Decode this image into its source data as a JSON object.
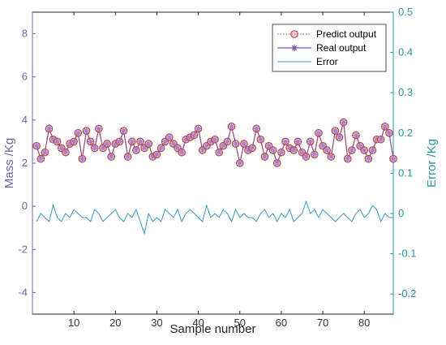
{
  "chart_data": {
    "type": "line",
    "xlabel": "Sample number",
    "ylabel_left": "Mass /Kg",
    "ylabel_right": "Error /Kg",
    "xlim": [
      0,
      87
    ],
    "ylim_left": [
      -5,
      9
    ],
    "ylim_right": [
      -0.25,
      0.5
    ],
    "x_ticks": [
      10,
      20,
      30,
      40,
      50,
      60,
      70,
      80
    ],
    "y_left_ticks": [
      -4,
      -2,
      0,
      2,
      4,
      6,
      8
    ],
    "y_right_ticks": [
      -0.2,
      -0.1,
      0,
      0.1,
      0.2,
      0.3,
      0.4,
      0.5
    ],
    "grid": false,
    "legend_position": "top-right",
    "colors": {
      "predict": "#c0392b",
      "real": "#7b55b3",
      "error": "#3a97c4",
      "left_axis": "#7063a8",
      "right_axis": "#2a95a6"
    },
    "x": [
      1,
      2,
      3,
      4,
      5,
      6,
      7,
      8,
      9,
      10,
      11,
      12,
      13,
      14,
      15,
      16,
      17,
      18,
      19,
      20,
      21,
      22,
      23,
      24,
      25,
      26,
      27,
      28,
      29,
      30,
      31,
      32,
      33,
      34,
      35,
      36,
      37,
      38,
      39,
      40,
      41,
      42,
      43,
      44,
      45,
      46,
      47,
      48,
      49,
      50,
      51,
      52,
      53,
      54,
      55,
      56,
      57,
      58,
      59,
      60,
      61,
      62,
      63,
      64,
      65,
      66,
      67,
      68,
      69,
      70,
      71,
      72,
      73,
      74,
      75,
      76,
      77,
      78,
      79,
      80,
      81,
      82,
      83,
      84,
      85,
      86,
      87
    ],
    "series": [
      {
        "name": "Predict output",
        "axis": "left",
        "values": [
          2.8,
          2.2,
          2.5,
          3.6,
          3.1,
          3.0,
          2.7,
          2.5,
          2.9,
          3.0,
          3.4,
          2.2,
          3.5,
          3.0,
          2.7,
          3.6,
          2.7,
          2.9,
          2.3,
          2.9,
          3.0,
          3.5,
          2.3,
          3.0,
          2.6,
          3.0,
          2.7,
          2.9,
          2.3,
          2.4,
          2.7,
          3.0,
          3.2,
          2.9,
          2.7,
          2.5,
          3.1,
          3.2,
          3.3,
          3.6,
          2.6,
          2.8,
          3.0,
          3.1,
          2.5,
          2.8,
          3.0,
          3.7,
          2.9,
          2.0,
          2.9,
          2.6,
          2.7,
          3.6,
          3.1,
          2.3,
          2.8,
          2.6,
          2.0,
          2.5,
          3.0,
          2.7,
          2.6,
          3.0,
          2.5,
          2.3,
          3.0,
          2.4,
          3.4,
          2.8,
          2.6,
          2.3,
          3.5,
          3.2,
          3.9,
          2.2,
          2.6,
          3.3,
          2.8,
          2.6,
          2.2,
          2.6,
          3.1,
          3.1,
          3.7,
          3.4,
          2.2
        ]
      },
      {
        "name": "Real output",
        "axis": "left",
        "values": [
          2.8,
          2.2,
          2.5,
          3.6,
          3.1,
          3.0,
          2.7,
          2.5,
          2.9,
          3.0,
          3.4,
          2.2,
          3.5,
          3.0,
          2.7,
          3.6,
          2.7,
          2.9,
          2.3,
          2.9,
          3.0,
          3.5,
          2.3,
          3.0,
          2.6,
          3.0,
          2.7,
          2.9,
          2.3,
          2.4,
          2.7,
          3.0,
          3.2,
          2.9,
          2.7,
          2.5,
          3.1,
          3.2,
          3.3,
          3.6,
          2.6,
          2.8,
          3.0,
          3.1,
          2.5,
          2.8,
          3.0,
          3.7,
          2.9,
          2.0,
          2.9,
          2.6,
          2.7,
          3.6,
          3.1,
          2.3,
          2.8,
          2.6,
          2.0,
          2.5,
          3.0,
          2.7,
          2.6,
          3.0,
          2.5,
          2.3,
          3.0,
          2.4,
          3.4,
          2.8,
          2.6,
          2.3,
          3.5,
          3.2,
          3.9,
          2.2,
          2.6,
          3.3,
          2.8,
          2.6,
          2.2,
          2.6,
          3.1,
          3.1,
          3.7,
          3.4,
          2.2
        ]
      },
      {
        "name": "Error",
        "axis": "right",
        "values": [
          -0.02,
          0.0,
          -0.01,
          -0.02,
          0.02,
          -0.01,
          -0.02,
          0.0,
          -0.01,
          0.01,
          0.0,
          -0.01,
          -0.01,
          -0.02,
          0.01,
          0.0,
          -0.02,
          -0.01,
          0.0,
          0.01,
          -0.01,
          -0.02,
          0.0,
          -0.01,
          0.01,
          -0.02,
          -0.05,
          0.0,
          -0.02,
          -0.01,
          -0.02,
          0.01,
          0.0,
          -0.01,
          0.01,
          -0.02,
          0.0,
          0.01,
          0.0,
          -0.01,
          -0.02,
          0.02,
          -0.01,
          0.0,
          -0.01,
          0.01,
          0.0,
          -0.02,
          0.01,
          -0.01,
          0.0,
          -0.01,
          -0.01,
          -0.02,
          0.0,
          0.01,
          -0.01,
          0.0,
          -0.02,
          0.0,
          -0.01,
          0.01,
          -0.02,
          -0.01,
          0.0,
          0.03,
          0.0,
          0.01,
          -0.01,
          0.01,
          0.0,
          -0.01,
          -0.02,
          -0.01,
          0.0,
          -0.01,
          -0.02,
          0.0,
          0.01,
          -0.01,
          0.0,
          0.02,
          0.01,
          -0.02,
          0.0,
          -0.01,
          -0.01
        ]
      }
    ]
  }
}
